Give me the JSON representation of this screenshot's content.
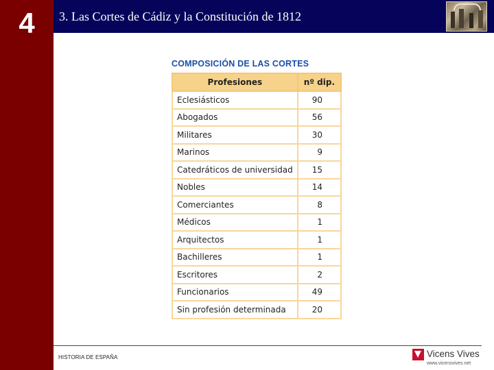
{
  "chapter": {
    "number": "4"
  },
  "header": {
    "title": "3. Las Cortes de Cádiz y la Constitución de 1812"
  },
  "table": {
    "title": "COMPOSICIÓN DE LAS CORTES",
    "columns": [
      "Profesiones",
      "nº dip."
    ],
    "rows": [
      {
        "profession": "Eclesiásticos",
        "count": "90"
      },
      {
        "profession": "Abogados",
        "count": "56"
      },
      {
        "profession": "Militares",
        "count": "30"
      },
      {
        "profession": "Marinos",
        "count": "9"
      },
      {
        "profession": "Catedráticos de universidad",
        "count": "15"
      },
      {
        "profession": "Nobles",
        "count": "14"
      },
      {
        "profession": "Comerciantes",
        "count": "8"
      },
      {
        "profession": "Médicos",
        "count": "1"
      },
      {
        "profession": "Arquitectos",
        "count": "1"
      },
      {
        "profession": "Bachilleres",
        "count": "1"
      },
      {
        "profession": "Escritores",
        "count": "2"
      },
      {
        "profession": "Funcionarios",
        "count": "49"
      },
      {
        "profession": "Sin profesión determinada",
        "count": "20"
      }
    ]
  },
  "footer": {
    "text": "HISTORIA DE ESPAÑA",
    "logo_name": "Vicens Vives",
    "logo_url": "www.vicensvives.net"
  },
  "colors": {
    "sidebar": "#7a0000",
    "header": "#05045a",
    "table_header": "#f7d28a",
    "table_border": "#f8d69a",
    "title_blue": "#1a4ea6",
    "logo_red": "#c8102e"
  }
}
